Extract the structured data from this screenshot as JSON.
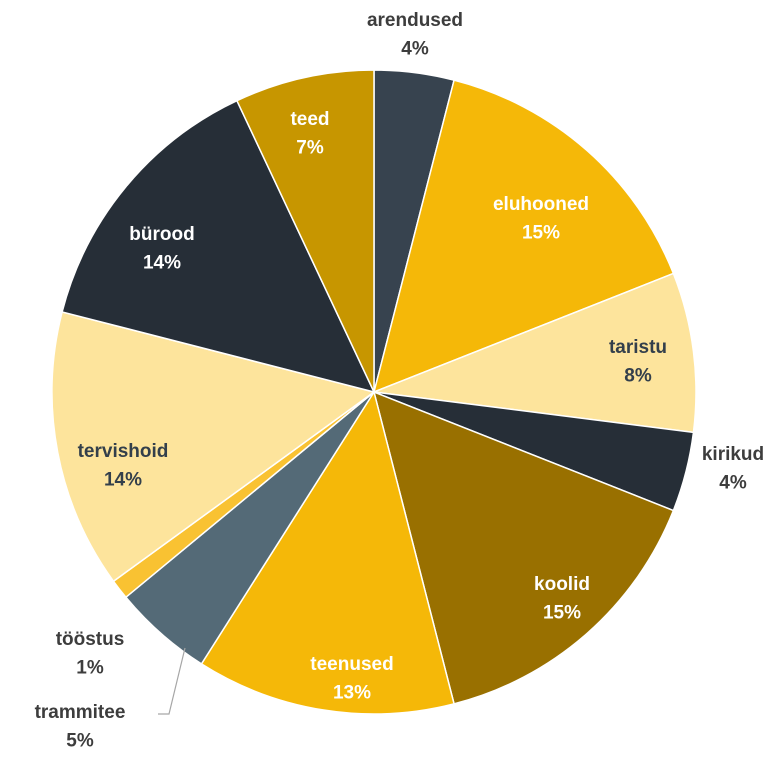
{
  "chart_data": {
    "type": "pie",
    "title": "",
    "slices": [
      {
        "label": "arendused",
        "value": 4,
        "display": "4%",
        "color": "#37434f"
      },
      {
        "label": "eluhooned",
        "value": 15,
        "display": "15%",
        "color": "#f5b808"
      },
      {
        "label": "taristu",
        "value": 8,
        "display": "8%",
        "color": "#fde49c"
      },
      {
        "label": "kirikud",
        "value": 4,
        "display": "4%",
        "color": "#262e37"
      },
      {
        "label": "koolid",
        "value": 15,
        "display": "15%",
        "color": "#997000"
      },
      {
        "label": "teenused",
        "value": 13,
        "display": "13%",
        "color": "#f5b808"
      },
      {
        "label": "trammitee",
        "value": 5,
        "display": "5%",
        "color": "#546a77"
      },
      {
        "label": "tööstus",
        "value": 1,
        "display": "1%",
        "color": "#f9c232"
      },
      {
        "label": "tervishoid",
        "value": 14,
        "display": "14%",
        "color": "#fde49c"
      },
      {
        "label": "bürood",
        "value": 14,
        "display": "14%",
        "color": "#262e37"
      },
      {
        "label": "teed",
        "value": 7,
        "display": "7%",
        "color": "#c79600"
      }
    ],
    "start_angle": "12 o'clock",
    "direction": "clockwise",
    "legend": "none",
    "label_placement": "inside"
  }
}
